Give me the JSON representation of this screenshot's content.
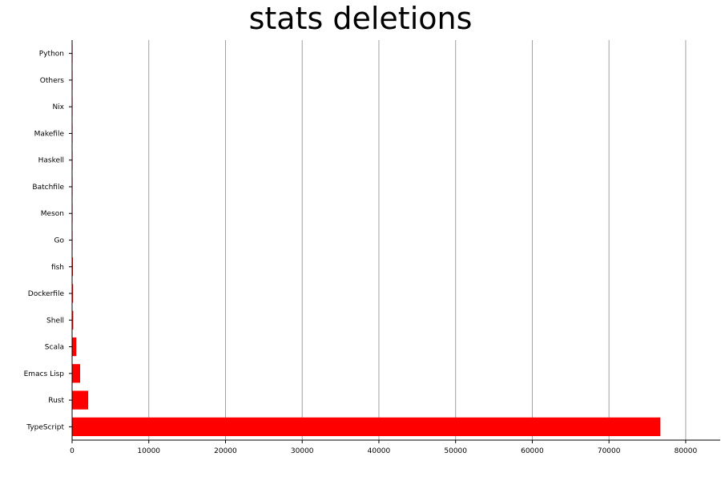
{
  "chart_data": {
    "type": "bar",
    "orientation": "horizontal",
    "title": "stats deletions",
    "xlabel": "",
    "ylabel": "",
    "categories": [
      "TypeScript",
      "Rust",
      "Emacs Lisp",
      "Scala",
      "Shell",
      "Dockerfile",
      "fish",
      "Go",
      "Meson",
      "Batchfile",
      "Haskell",
      "Makefile",
      "Nix",
      "Others",
      "Python"
    ],
    "values": [
      76700,
      2100,
      1050,
      550,
      150,
      130,
      110,
      25,
      10,
      5,
      5,
      3,
      2,
      1,
      1
    ],
    "xlim": [
      0,
      84500
    ],
    "xticks": [
      "0",
      "10000",
      "20000",
      "30000",
      "40000",
      "50000",
      "60000",
      "70000",
      "80000"
    ],
    "grid": "vertical",
    "legend": "none",
    "bar_color": "#ff0000",
    "grid_color": "#a0a0a0"
  }
}
